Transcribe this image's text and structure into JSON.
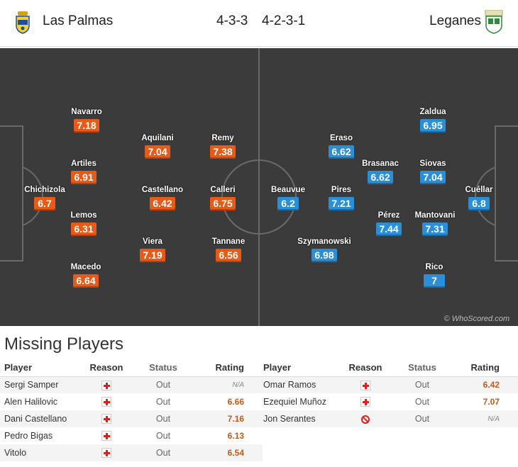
{
  "header": {
    "home_team": "Las Palmas",
    "home_formation": "4-3-3",
    "away_formation": "4-2-3-1",
    "away_team": "Leganes",
    "home_crest_icon": "las-palmas-crest-icon",
    "away_crest_icon": "leganes-crest-icon"
  },
  "pitch": {
    "watermark": "© WhoScored.com",
    "home_color": "#e85a18",
    "away_color": "#2a8fd6",
    "home_players": [
      {
        "name": "Navarro",
        "rating": "7.18"
      },
      {
        "name": "Artiles",
        "rating": "6.91"
      },
      {
        "name": "Chichizola",
        "rating": "6.7"
      },
      {
        "name": "Lemos",
        "rating": "6.31"
      },
      {
        "name": "Macedo",
        "rating": "6.64"
      },
      {
        "name": "Aquilani",
        "rating": "7.04"
      },
      {
        "name": "Castellano",
        "rating": "6.42"
      },
      {
        "name": "Viera",
        "rating": "7.19"
      },
      {
        "name": "Remy",
        "rating": "7.38"
      },
      {
        "name": "Calleri",
        "rating": "6.75"
      },
      {
        "name": "Tannane",
        "rating": "6.56"
      }
    ],
    "away_players": [
      {
        "name": "Eraso",
        "rating": "6.62"
      },
      {
        "name": "Beauvue",
        "rating": "6.2"
      },
      {
        "name": "Pires",
        "rating": "7.21"
      },
      {
        "name": "Szymanowski",
        "rating": "6.98"
      },
      {
        "name": "Brasanac",
        "rating": "6.62"
      },
      {
        "name": "Pérez",
        "rating": "7.44"
      },
      {
        "name": "Zaldua",
        "rating": "6.95"
      },
      {
        "name": "Siovas",
        "rating": "7.04"
      },
      {
        "name": "Mantovani",
        "rating": "7.31"
      },
      {
        "name": "Rico",
        "rating": "7"
      },
      {
        "name": "Cuéllar",
        "rating": "6.8"
      }
    ]
  },
  "missing": {
    "title": "Missing Players",
    "headers": {
      "player": "Player",
      "reason": "Reason",
      "status": "Status",
      "rating": "Rating"
    },
    "home": [
      {
        "player": "Sergi Samper",
        "reason": "injury-icon",
        "status": "Out",
        "rating": "N/A"
      },
      {
        "player": "Alen Halilovic",
        "reason": "injury-icon",
        "status": "Out",
        "rating": "6.66"
      },
      {
        "player": "Dani Castellano",
        "reason": "injury-icon",
        "status": "Out",
        "rating": "7.16"
      },
      {
        "player": "Pedro Bigas",
        "reason": "injury-icon",
        "status": "Out",
        "rating": "6.13"
      },
      {
        "player": "Vitolo",
        "reason": "injury-icon",
        "status": "Out",
        "rating": "6.54"
      }
    ],
    "away": [
      {
        "player": "Omar Ramos",
        "reason": "injury-icon",
        "status": "Out",
        "rating": "6.42"
      },
      {
        "player": "Ezequiel Muñoz",
        "reason": "injury-icon",
        "status": "Out",
        "rating": "7.07"
      },
      {
        "player": "Jon Serantes",
        "reason": "suspension-icon",
        "status": "Out",
        "rating": "N/A"
      }
    ]
  }
}
